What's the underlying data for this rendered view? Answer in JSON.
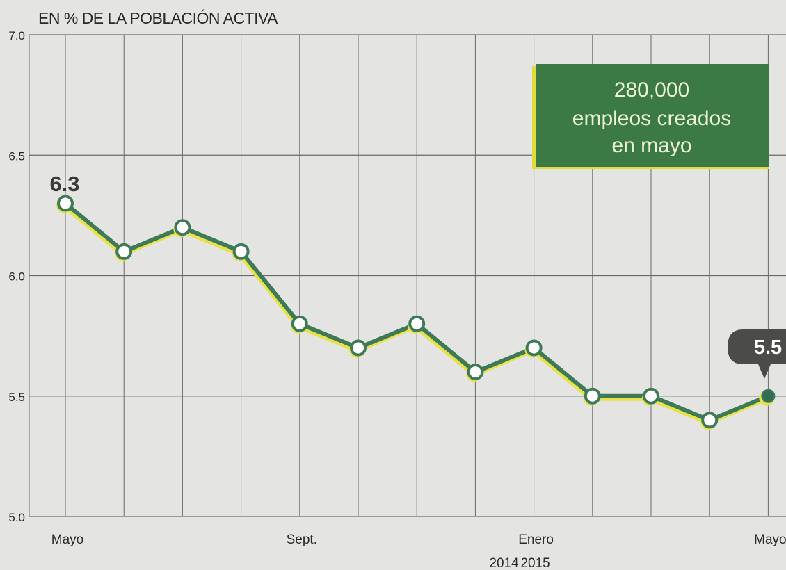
{
  "chart_data": {
    "type": "line",
    "title": "EN % DE LA POBLACIÓN ACTIVA",
    "xlabel": "",
    "ylabel": "",
    "ylim": [
      5.0,
      7.0
    ],
    "yticks": [
      "7.0",
      "6.5",
      "6.0",
      "5.5",
      "5.0"
    ],
    "x_labels": [
      "Mayo",
      "",
      "",
      "",
      "Sept.",
      "",
      "",
      "",
      "Enero",
      "",
      "",
      "",
      "Mayo"
    ],
    "year_labels": [
      "2014",
      "2015"
    ],
    "grid": true,
    "series": [
      {
        "values": [
          6.3,
          6.1,
          6.2,
          6.1,
          5.8,
          5.7,
          5.8,
          5.6,
          5.7,
          5.5,
          5.5,
          5.4,
          5.5
        ]
      }
    ],
    "annotations": {
      "first_value": "6.3",
      "last_value": "5.5",
      "callout_lines": [
        "280,000",
        "empleos creados",
        "en mayo"
      ]
    },
    "colors": {
      "line": "#3f7a58",
      "line_shadow": "#e7e14a",
      "last_marker": "#2f6e54",
      "callout_bg": "#3b7a45",
      "callout_edge": "#e2dc3a",
      "callout_text": "#ecf2d8",
      "badge_bg": "#4b4b49",
      "badge_text": "#ffffff",
      "grid": "#6a6a6a",
      "text": "#2a2a2a"
    }
  }
}
